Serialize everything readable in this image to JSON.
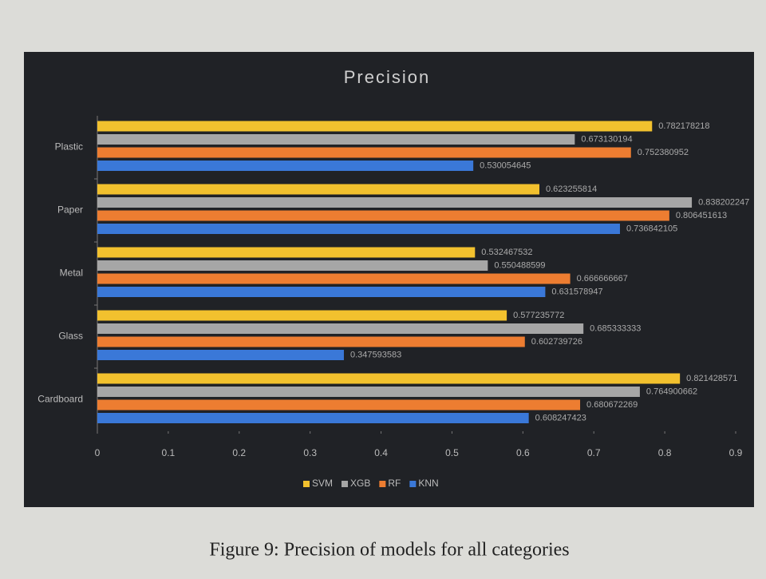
{
  "chart_data": {
    "type": "bar",
    "orientation": "horizontal",
    "title": "Precision",
    "caption": "Figure 9: Precision of models for all categories",
    "categories": [
      "Plastic",
      "Paper",
      "Metal",
      "Glass",
      "Cardboard"
    ],
    "series": [
      {
        "name": "SVM",
        "color": "#f2c12e",
        "values": [
          0.782178218,
          0.623255814,
          0.532467532,
          0.577235772,
          0.821428571
        ]
      },
      {
        "name": "XGB",
        "color": "#a6a6a6",
        "values": [
          0.673130194,
          0.838202247,
          0.550488599,
          0.685333333,
          0.764900662
        ]
      },
      {
        "name": "RF",
        "color": "#ed7d31",
        "values": [
          0.752380952,
          0.806451613,
          0.666666667,
          0.602739726,
          0.680672269
        ]
      },
      {
        "name": "KNN",
        "color": "#3a78d8",
        "values": [
          0.530054645,
          0.736842105,
          0.631578947,
          0.347593583,
          0.608247423
        ]
      }
    ],
    "xlim": [
      0,
      0.9
    ],
    "xticks": [
      0,
      0.1,
      0.2,
      0.3,
      0.4,
      0.5,
      0.6,
      0.7,
      0.8,
      0.9
    ],
    "legend": "bottom",
    "grid": false
  }
}
